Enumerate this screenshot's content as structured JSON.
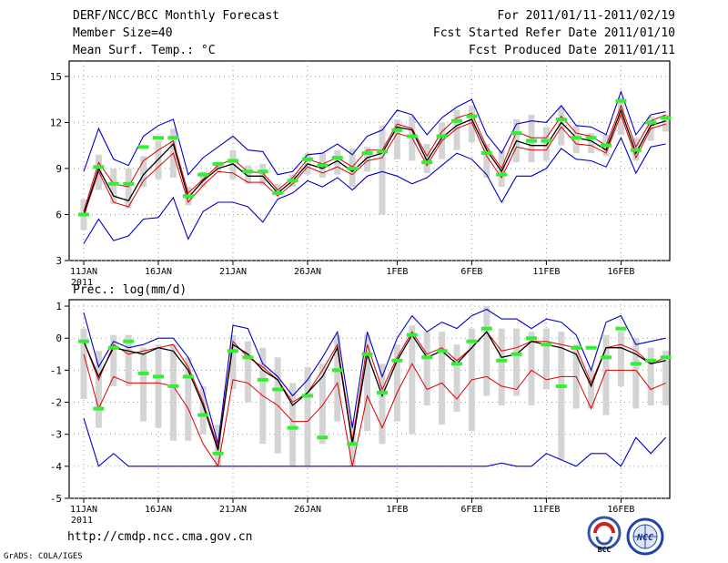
{
  "header": {
    "title": "DERF/NCC/BCC Monthly Forecast",
    "member_size": "Member Size=40",
    "var1": "Mean Surf. Temp.: °C",
    "period": "For 2011/01/11-2011/02/19",
    "started": "Fcst Started Refer Date 2011/01/10",
    "produced": "Fcst Produced Date 2011/01/11"
  },
  "footer": {
    "url": "http://cmdp.ncc.cma.gov.cn",
    "grads": "GrADS: COLA/IGES",
    "logo1_text": "BCC",
    "logo2_text": "NCC"
  },
  "colors": {
    "ensemble_mean": "#000000",
    "bounds": "#0000cc",
    "spread": "#dd0000",
    "observed": "#33ee33",
    "box": "#d4d4d4"
  },
  "chart_data": [
    {
      "type": "line",
      "title": "Mean Surf. Temp.: °C",
      "days": 40,
      "x_tick_labels": [
        "11JAN",
        "16JAN",
        "21JAN",
        "26JAN",
        "1FEB",
        "6FEB",
        "11FEB",
        "16FEB"
      ],
      "year_label": "2011",
      "ylim": [
        3,
        16
      ],
      "y_ticks": [
        3,
        6,
        9,
        12,
        15
      ],
      "series": [
        {
          "name": "max",
          "values": [
            8.8,
            11.6,
            9.6,
            9.2,
            11.1,
            11.8,
            12.2,
            8.6,
            9.7,
            10.4,
            11.1,
            10.2,
            10.1,
            8.6,
            8.8,
            9.9,
            10.0,
            10.6,
            9.9,
            11.1,
            11.5,
            12.8,
            12.5,
            11.2,
            12.3,
            13.0,
            13.5,
            11.2,
            10.0,
            11.9,
            12.1,
            12.0,
            13.1,
            11.8,
            11.7,
            11.2,
            14.0,
            11.2,
            12.5,
            12.7
          ]
        },
        {
          "name": "upper",
          "values": [
            6.2,
            9.4,
            8.0,
            7.8,
            9.5,
            10.2,
            10.8,
            7.4,
            8.3,
            9.2,
            9.6,
            8.8,
            8.7,
            7.6,
            8.4,
            9.6,
            9.3,
            9.7,
            9.1,
            10.2,
            10.2,
            11.9,
            11.6,
            9.8,
            11.4,
            12.3,
            12.6,
            10.4,
            9.0,
            11.4,
            11.0,
            11.0,
            12.4,
            11.3,
            11.1,
            10.5,
            13.1,
            10.4,
            12.1,
            12.5
          ]
        },
        {
          "name": "mean",
          "values": [
            6.0,
            9.0,
            7.2,
            6.9,
            8.6,
            9.6,
            10.6,
            7.1,
            8.2,
            9.0,
            9.3,
            8.5,
            8.5,
            7.4,
            8.2,
            9.3,
            9.0,
            9.5,
            8.8,
            9.7,
            10.0,
            11.7,
            11.5,
            9.5,
            11.0,
            11.8,
            12.2,
            10.2,
            8.8,
            10.8,
            10.5,
            10.5,
            12.0,
            11.0,
            10.8,
            10.2,
            12.8,
            10.0,
            11.8,
            12.1
          ]
        },
        {
          "name": "lower",
          "values": [
            5.9,
            8.8,
            6.8,
            6.5,
            8.2,
            9.1,
            10.0,
            6.8,
            7.9,
            8.8,
            8.7,
            8.1,
            8.1,
            7.2,
            8.0,
            9.1,
            8.7,
            9.1,
            8.6,
            9.5,
            9.7,
            11.3,
            11.0,
            9.2,
            10.8,
            11.6,
            12.0,
            9.8,
            8.4,
            10.4,
            10.2,
            10.2,
            11.7,
            10.6,
            10.5,
            10.0,
            12.5,
            9.7,
            11.6,
            11.9
          ]
        },
        {
          "name": "min",
          "values": [
            4.1,
            5.7,
            4.3,
            4.6,
            5.7,
            5.8,
            7.1,
            4.4,
            6.2,
            6.8,
            6.8,
            6.5,
            5.5,
            7.0,
            7.4,
            8.2,
            7.8,
            8.4,
            7.6,
            8.5,
            8.8,
            8.5,
            8.0,
            8.4,
            9.2,
            10.0,
            9.6,
            8.6,
            6.8,
            8.5,
            8.5,
            9.0,
            10.3,
            9.6,
            9.5,
            9.1,
            11.0,
            8.7,
            10.4,
            10.6
          ]
        },
        {
          "name": "observed",
          "values": [
            6.0,
            9.1,
            8.0,
            8.0,
            10.4,
            11.0,
            11.0,
            7.2,
            8.6,
            9.3,
            9.5,
            8.8,
            8.8,
            7.4,
            8.2,
            9.6,
            9.2,
            9.7,
            9.0,
            10.0,
            10.1,
            11.5,
            11.1,
            9.4,
            11.1,
            12.1,
            12.4,
            10.0,
            8.6,
            11.3,
            10.8,
            10.8,
            12.2,
            11.0,
            11.0,
            10.5,
            13.4,
            10.2,
            12.0,
            12.3
          ]
        }
      ],
      "spread_box": {
        "low": [
          5.0,
          7.6,
          6.7,
          6.4,
          7.8,
          8.3,
          8.4,
          6.6,
          7.8,
          8.8,
          8.3,
          8.0,
          7.9,
          7.4,
          7.8,
          8.6,
          8.4,
          8.6,
          7.8,
          8.8,
          6.0,
          9.6,
          9.5,
          8.7,
          9.6,
          10.2,
          10.7,
          8.4,
          7.8,
          9.4,
          9.4,
          9.5,
          10.5,
          10.0,
          10.0,
          9.8,
          11.2,
          9.5,
          10.8,
          11.4
        ],
        "high": [
          7.0,
          9.9,
          9.0,
          9.0,
          9.8,
          10.8,
          11.6,
          7.8,
          8.8,
          9.4,
          10.2,
          9.2,
          9.3,
          8.0,
          8.6,
          10.0,
          10.0,
          10.2,
          10.3,
          10.4,
          11.8,
          12.2,
          12.4,
          10.6,
          12.0,
          12.8,
          13.1,
          10.6,
          10.2,
          12.2,
          12.5,
          11.7,
          13.0,
          11.8,
          11.3,
          11.2,
          13.6,
          11.0,
          12.4,
          12.5
        ]
      }
    },
    {
      "type": "line",
      "title": "Prec.: log(mm/d)",
      "days": 40,
      "x_tick_labels": [
        "11JAN",
        "16JAN",
        "21JAN",
        "26JAN",
        "1FEB",
        "6FEB",
        "11FEB",
        "16FEB"
      ],
      "year_label": "2011",
      "ylim": [
        -5,
        1.2
      ],
      "y_ticks": [
        -5,
        -4,
        -3,
        -2,
        -1,
        0,
        1
      ],
      "series": [
        {
          "name": "max",
          "values": [
            0.8,
            -0.9,
            -0.1,
            -0.3,
            -0.2,
            0.0,
            0.0,
            -0.6,
            -1.6,
            -3.3,
            0.4,
            0.3,
            -0.8,
            -1.2,
            -1.8,
            -1.3,
            -0.6,
            0.2,
            -2.8,
            0.2,
            -1.2,
            0.0,
            0.7,
            0.2,
            0.5,
            0.3,
            0.7,
            0.9,
            0.6,
            0.6,
            0.3,
            0.6,
            0.5,
            0.1,
            -1.0,
            0.5,
            0.7,
            -0.2,
            -0.1,
            0.0
          ]
        },
        {
          "name": "upper",
          "values": [
            -0.1,
            -1.3,
            -0.2,
            -0.5,
            -0.4,
            -0.3,
            -0.2,
            -0.9,
            -2.0,
            -3.4,
            -0.1,
            -0.6,
            -0.9,
            -1.3,
            -2.0,
            -1.7,
            -1.0,
            -0.2,
            -3.2,
            -0.2,
            -1.6,
            -0.6,
            0.2,
            -0.5,
            -0.3,
            -0.7,
            -0.3,
            0.2,
            -0.4,
            -0.3,
            -0.1,
            -0.1,
            -0.2,
            -0.3,
            -1.4,
            -0.3,
            -0.2,
            -0.4,
            -0.8,
            -0.6
          ]
        },
        {
          "name": "mean",
          "values": [
            -0.1,
            -1.2,
            -0.3,
            -0.4,
            -0.5,
            -0.3,
            -0.4,
            -1.0,
            -2.1,
            -3.5,
            -0.2,
            -0.5,
            -1.0,
            -1.3,
            -2.1,
            -1.7,
            -1.2,
            -0.3,
            -3.3,
            -0.5,
            -1.8,
            -0.7,
            0.1,
            -0.6,
            -0.4,
            -0.8,
            -0.3,
            0.2,
            -0.6,
            -0.5,
            -0.1,
            -0.2,
            -0.3,
            -0.5,
            -1.5,
            -0.3,
            -0.3,
            -0.5,
            -0.8,
            -0.7
          ]
        },
        {
          "name": "lower",
          "values": [
            -0.5,
            -2.2,
            -1.2,
            -1.4,
            -1.4,
            -1.4,
            -1.5,
            -2.2,
            -3.3,
            -4.0,
            -1.3,
            -1.4,
            -1.8,
            -2.1,
            -2.6,
            -2.6,
            -2.1,
            -1.4,
            -4.0,
            -1.8,
            -2.8,
            -1.7,
            -0.8,
            -1.6,
            -1.4,
            -1.9,
            -1.3,
            -1.2,
            -1.5,
            -1.6,
            -1.0,
            -1.3,
            -1.2,
            -1.2,
            -2.2,
            -1.0,
            -1.0,
            -1.0,
            -1.6,
            -1.4
          ]
        },
        {
          "name": "min",
          "values": [
            -2.5,
            -4.0,
            -3.6,
            -4.0,
            -4.0,
            -4.0,
            -4.0,
            -4.0,
            -4.0,
            -4.0,
            -4.0,
            -4.0,
            -4.0,
            -4.0,
            -4.0,
            -4.0,
            -4.0,
            -4.0,
            -4.0,
            -4.0,
            -4.0,
            -4.0,
            -4.0,
            -4.0,
            -4.0,
            -4.0,
            -4.0,
            -4.0,
            -3.9,
            -4.0,
            -4.0,
            -3.6,
            -3.8,
            -4.0,
            -3.6,
            -3.6,
            -4.0,
            -3.1,
            -3.6,
            -3.1
          ]
        },
        {
          "name": "observed",
          "values": [
            -0.1,
            -2.2,
            -0.3,
            -0.1,
            -1.1,
            -1.2,
            -1.5,
            -1.2,
            -2.4,
            -3.6,
            -0.4,
            -0.6,
            -1.3,
            -1.6,
            -2.8,
            -1.8,
            -3.1,
            -1.0,
            -3.3,
            -0.5,
            -1.7,
            -0.7,
            0.1,
            -0.6,
            -0.4,
            -0.8,
            -0.1,
            0.3,
            -0.7,
            -0.5,
            0.0,
            -0.2,
            -1.5,
            -0.3,
            -0.3,
            -0.6,
            0.3,
            -0.8,
            -0.7,
            -0.6
          ]
        }
      ],
      "spread_box": {
        "low": [
          -1.9,
          -2.8,
          -1.5,
          -1.5,
          -2.6,
          -2.8,
          -3.2,
          -3.2,
          -3.0,
          -4.0,
          -1.6,
          -2.0,
          -3.3,
          -3.6,
          -4.0,
          -4.0,
          -3.3,
          -2.6,
          -4.0,
          -2.9,
          -3.3,
          -2.6,
          -3.0,
          -2.1,
          -2.7,
          -2.3,
          -2.9,
          -1.8,
          -2.1,
          -1.8,
          -2.1,
          -1.6,
          -3.8,
          -2.2,
          -2.2,
          -2.4,
          -1.5,
          -2.2,
          -2.1,
          -2.1
        ],
        "high": [
          0.3,
          -0.4,
          0.1,
          0.1,
          -0.3,
          -0.2,
          -0.2,
          -0.6,
          -1.5,
          -2.7,
          0.1,
          -0.1,
          -0.3,
          -0.6,
          -1.4,
          -0.9,
          -0.8,
          0.1,
          -2.6,
          0.1,
          -0.8,
          -0.2,
          0.4,
          0.2,
          0.2,
          -0.2,
          0.3,
          1.0,
          0.3,
          0.3,
          0.2,
          0.3,
          0.2,
          -0.2,
          -1.0,
          0.1,
          0.2,
          0.0,
          -0.3,
          -0.4
        ]
      }
    }
  ]
}
